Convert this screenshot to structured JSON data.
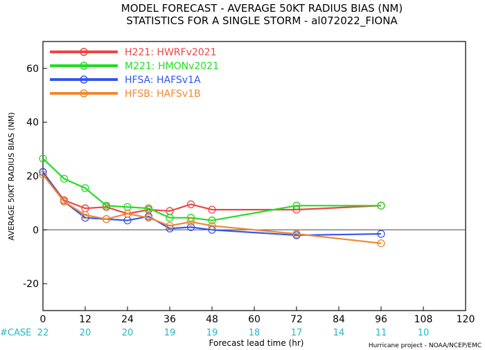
{
  "chart_data": {
    "type": "line",
    "title": "MODEL FORECAST - AVERAGE 50KT RADIUS BIAS (NM)",
    "subtitle": "STATISTICS FOR A SINGLE STORM - al072022_FIONA",
    "xlabel": "Forecast lead time (hr)",
    "ylabel": "AVERAGE 50KT RADIUS BIAS (NM)",
    "xlim": [
      0,
      120
    ],
    "ylim": [
      -30,
      70
    ],
    "x_ticks": [
      0,
      12,
      24,
      36,
      48,
      60,
      72,
      84,
      96,
      108,
      120
    ],
    "y_ticks": [
      -20,
      0,
      20,
      40,
      60
    ],
    "zero_line": true,
    "grid": false,
    "legend_position": "top-left",
    "series": [
      {
        "name": "H221: HWRFv2021",
        "color": "#ee4444",
        "x": [
          0,
          6,
          12,
          18,
          24,
          30,
          36,
          42,
          48,
          72,
          96
        ],
        "y": [
          21.5,
          11,
          8,
          8.5,
          6,
          7.5,
          7,
          9.5,
          7.5,
          7.5,
          9
        ]
      },
      {
        "name": "M221: HMONv2021",
        "color": "#22dd22",
        "x": [
          0,
          6,
          12,
          18,
          24,
          30,
          36,
          42,
          48,
          72,
          96
        ],
        "y": [
          26.5,
          19,
          15.5,
          9,
          8.5,
          8,
          4.5,
          4.5,
          3.5,
          9,
          9
        ]
      },
      {
        "name": "HFSA: HAFSv1A",
        "color": "#3355ee",
        "x": [
          0,
          6,
          12,
          18,
          24,
          30,
          36,
          42,
          48,
          72,
          96
        ],
        "y": [
          21.5,
          10.5,
          4.5,
          4,
          3.5,
          5,
          0.5,
          1,
          0,
          -2,
          -1.5
        ]
      },
      {
        "name": "HFSB: HAFSv1B",
        "color": "#ee8833",
        "x": [
          0,
          6,
          12,
          18,
          24,
          30,
          36,
          42,
          48,
          72,
          96
        ],
        "y": [
          20.5,
          10.5,
          5.5,
          4,
          6,
          4.5,
          1.5,
          3,
          1.5,
          -1.5,
          -5
        ]
      }
    ],
    "cases": {
      "label": "#CASE",
      "x": [
        0,
        12,
        24,
        36,
        48,
        60,
        72,
        84,
        96,
        108
      ],
      "values": [
        "22",
        "20",
        "20",
        "19",
        "19",
        "18",
        "17",
        "14",
        "11",
        "10"
      ],
      "color": "#20b8c8"
    },
    "credit": "Hurricane project - NOAA/NCEP/EMC"
  }
}
